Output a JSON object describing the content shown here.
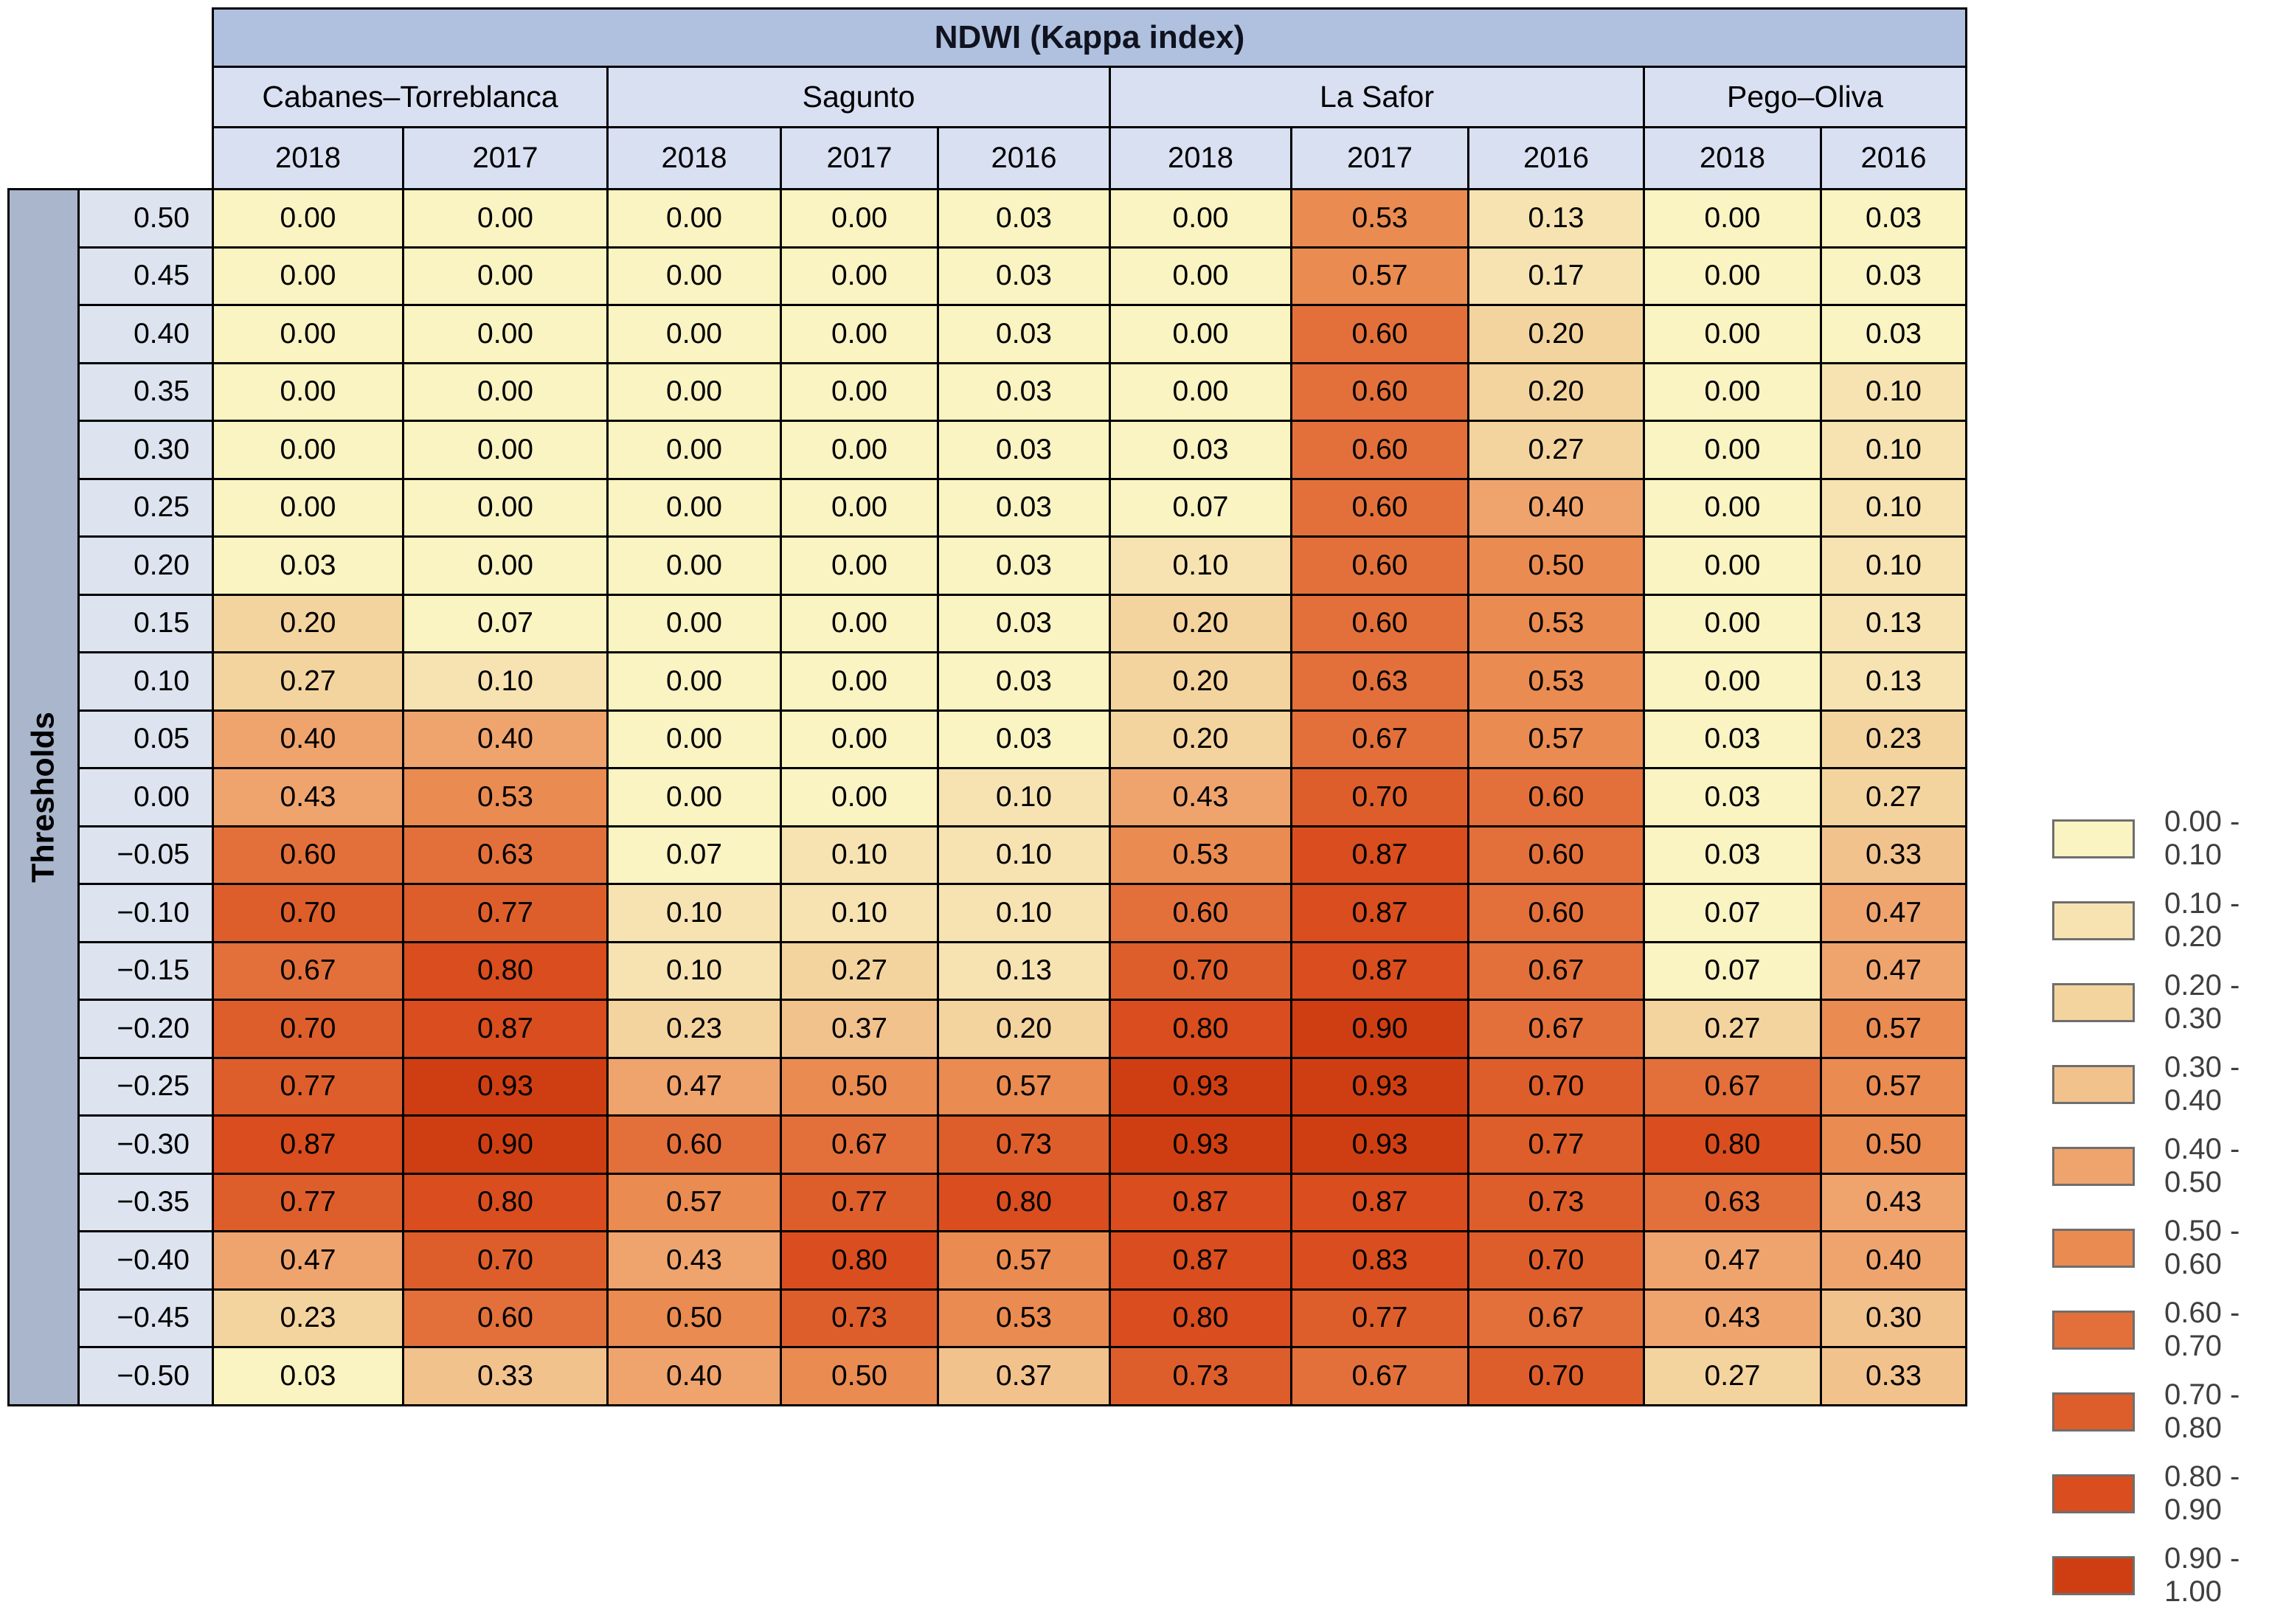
{
  "chart_data": {
    "type": "heatmap",
    "title": "NDWI (Kappa index)",
    "ylabel": "Thresholds",
    "legend_position": "right",
    "groups": [
      {
        "name": "Cabanes–Torreblanca",
        "years": [
          "2018",
          "2017"
        ]
      },
      {
        "name": "Sagunto",
        "years": [
          "2018",
          "2017",
          "2016"
        ]
      },
      {
        "name": "La Safor",
        "years": [
          "2018",
          "2017",
          "2016"
        ]
      },
      {
        "name": "Pego–Oliva",
        "years": [
          "2018",
          "2016"
        ]
      }
    ],
    "columns": [
      "Cabanes–Torreblanca 2018",
      "Cabanes–Torreblanca 2017",
      "Sagunto 2018",
      "Sagunto 2017",
      "Sagunto 2016",
      "La Safor 2018",
      "La Safor 2017",
      "La Safor 2016",
      "Pego–Oliva 2018",
      "Pego–Oliva 2016"
    ],
    "thresholds": [
      "0.50",
      "0.45",
      "0.40",
      "0.35",
      "0.30",
      "0.25",
      "0.20",
      "0.15",
      "0.10",
      "0.05",
      "0.00",
      "−0.05",
      "−0.10",
      "−0.15",
      "−0.20",
      "−0.25",
      "−0.30",
      "−0.35",
      "−0.40",
      "−0.45",
      "−0.50"
    ],
    "rows": [
      [
        0.0,
        0.0,
        0.0,
        0.0,
        0.03,
        0.0,
        0.53,
        0.13,
        0.0,
        0.03
      ],
      [
        0.0,
        0.0,
        0.0,
        0.0,
        0.03,
        0.0,
        0.57,
        0.17,
        0.0,
        0.03
      ],
      [
        0.0,
        0.0,
        0.0,
        0.0,
        0.03,
        0.0,
        0.6,
        0.2,
        0.0,
        0.03
      ],
      [
        0.0,
        0.0,
        0.0,
        0.0,
        0.03,
        0.0,
        0.6,
        0.2,
        0.0,
        0.1
      ],
      [
        0.0,
        0.0,
        0.0,
        0.0,
        0.03,
        0.03,
        0.6,
        0.27,
        0.0,
        0.1
      ],
      [
        0.0,
        0.0,
        0.0,
        0.0,
        0.03,
        0.07,
        0.6,
        0.4,
        0.0,
        0.1
      ],
      [
        0.03,
        0.0,
        0.0,
        0.0,
        0.03,
        0.1,
        0.6,
        0.5,
        0.0,
        0.1
      ],
      [
        0.2,
        0.07,
        0.0,
        0.0,
        0.03,
        0.2,
        0.6,
        0.53,
        0.0,
        0.13
      ],
      [
        0.27,
        0.1,
        0.0,
        0.0,
        0.03,
        0.2,
        0.63,
        0.53,
        0.0,
        0.13
      ],
      [
        0.4,
        0.4,
        0.0,
        0.0,
        0.03,
        0.2,
        0.67,
        0.57,
        0.03,
        0.23
      ],
      [
        0.43,
        0.53,
        0.0,
        0.0,
        0.1,
        0.43,
        0.7,
        0.6,
        0.03,
        0.27
      ],
      [
        0.6,
        0.63,
        0.07,
        0.1,
        0.1,
        0.53,
        0.87,
        0.6,
        0.03,
        0.33
      ],
      [
        0.7,
        0.77,
        0.1,
        0.1,
        0.1,
        0.6,
        0.87,
        0.6,
        0.07,
        0.47
      ],
      [
        0.67,
        0.8,
        0.1,
        0.27,
        0.13,
        0.7,
        0.87,
        0.67,
        0.07,
        0.47
      ],
      [
        0.7,
        0.87,
        0.23,
        0.37,
        0.2,
        0.8,
        0.9,
        0.67,
        0.27,
        0.57
      ],
      [
        0.77,
        0.93,
        0.47,
        0.5,
        0.57,
        0.93,
        0.93,
        0.7,
        0.67,
        0.57
      ],
      [
        0.87,
        0.9,
        0.6,
        0.67,
        0.73,
        0.93,
        0.93,
        0.77,
        0.8,
        0.5
      ],
      [
        0.77,
        0.8,
        0.57,
        0.77,
        0.8,
        0.87,
        0.87,
        0.73,
        0.63,
        0.43
      ],
      [
        0.47,
        0.7,
        0.43,
        0.8,
        0.57,
        0.87,
        0.83,
        0.7,
        0.47,
        0.4
      ],
      [
        0.23,
        0.6,
        0.5,
        0.73,
        0.53,
        0.8,
        0.77,
        0.67,
        0.43,
        0.3
      ],
      [
        0.03,
        0.33,
        0.4,
        0.5,
        0.37,
        0.73,
        0.67,
        0.7,
        0.27,
        0.33
      ]
    ]
  },
  "legend": {
    "items": [
      {
        "label": "0.00 - 0.10",
        "color": "#FAF3C2"
      },
      {
        "label": "0.10 - 0.20",
        "color": "#F6E3B1"
      },
      {
        "label": "0.20 - 0.30",
        "color": "#F4D49E"
      },
      {
        "label": "0.30 - 0.40",
        "color": "#F2C28D"
      },
      {
        "label": "0.40 - 0.50",
        "color": "#EFA46E"
      },
      {
        "label": "0.50 - 0.60",
        "color": "#EA8B51"
      },
      {
        "label": "0.60 - 0.70",
        "color": "#E3703A"
      },
      {
        "label": "0.70 - 0.80",
        "color": "#DE5E2B"
      },
      {
        "label": "0.80 - 0.90",
        "color": "#D94D1E"
      },
      {
        "label": "0.90 - 1.00",
        "color": "#CF3E12"
      }
    ]
  }
}
